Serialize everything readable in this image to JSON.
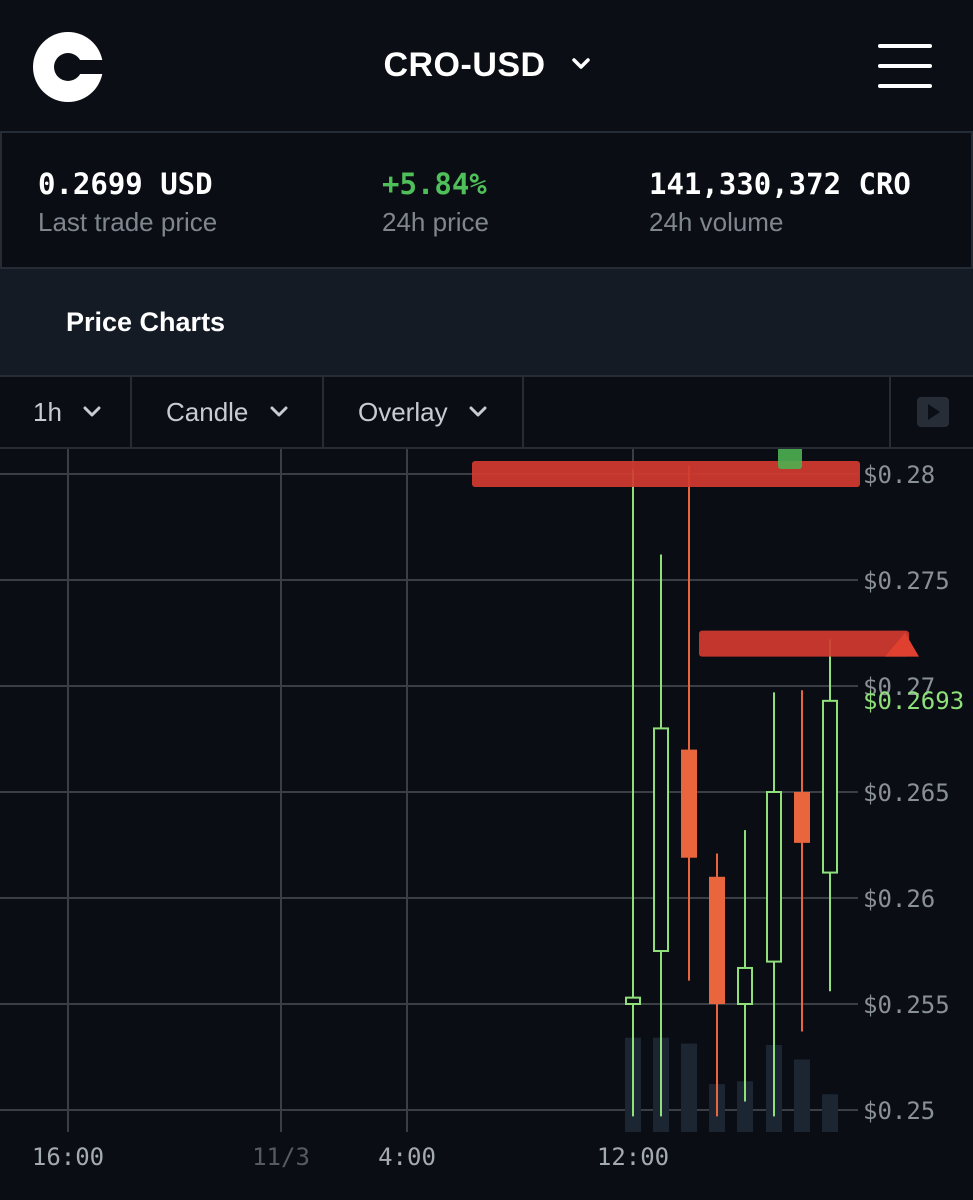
{
  "header": {
    "pair": "CRO-USD",
    "icons": {
      "logo": "coinbase-logo",
      "pair_dropdown": "chevron-down-icon",
      "menu": "hamburger-menu-icon"
    }
  },
  "stats": [
    {
      "value": "0.2699 USD",
      "label": "Last trade price"
    },
    {
      "value": "+5.84%",
      "label": "24h price",
      "color": "#4fbf5a"
    },
    {
      "value": "141,330,372 CRO",
      "label": "24h volume"
    }
  ],
  "section": {
    "title": "Price Charts"
  },
  "toolbar": {
    "interval": "1h",
    "chart_type": "Candle",
    "overlay": "Overlay",
    "play_icon": "play-icon"
  },
  "colors": {
    "up": "#8fe07a",
    "down": "#e8653d",
    "background": "#0a0e14",
    "grid": "#3a3f46"
  },
  "chart_data": {
    "type": "candlestick",
    "x_ticks": [
      "16:00",
      "11/3",
      "4:00",
      "12:00"
    ],
    "y_ticks": [
      "$0.28",
      "$0.275",
      "$0.27",
      "$0.265",
      "$0.26",
      "$0.255",
      "$0.25"
    ],
    "ylim": [
      0.25,
      0.28
    ],
    "last_price_label": "$0.2693",
    "last_price": 0.2693,
    "candles": [
      {
        "open": 0.255,
        "high": 0.2802,
        "low": 0.2497,
        "close": 0.2553,
        "volume": 0.65
      },
      {
        "open": 0.2575,
        "high": 0.2762,
        "low": 0.2497,
        "close": 0.268,
        "volume": 0.65
      },
      {
        "open": 0.267,
        "high": 0.2804,
        "low": 0.2561,
        "close": 0.2619,
        "volume": 0.61
      },
      {
        "open": 0.261,
        "high": 0.2621,
        "low": 0.2497,
        "close": 0.255,
        "volume": 0.33
      },
      {
        "open": 0.255,
        "high": 0.2632,
        "low": 0.2504,
        "close": 0.2567,
        "volume": 0.35
      },
      {
        "open": 0.257,
        "high": 0.2697,
        "low": 0.2497,
        "close": 0.265,
        "volume": 0.6
      },
      {
        "open": 0.265,
        "high": 0.2698,
        "low": 0.2537,
        "close": 0.2626,
        "volume": 0.5
      },
      {
        "open": 0.2612,
        "high": 0.2722,
        "low": 0.2556,
        "close": 0.2693,
        "volume": 0.26
      }
    ],
    "annotations": [
      {
        "type": "red-marker-bar",
        "price": 0.28
      },
      {
        "type": "red-marker-bar",
        "price": 0.272
      },
      {
        "type": "green-marker-bar",
        "price": 0.2815
      }
    ]
  }
}
